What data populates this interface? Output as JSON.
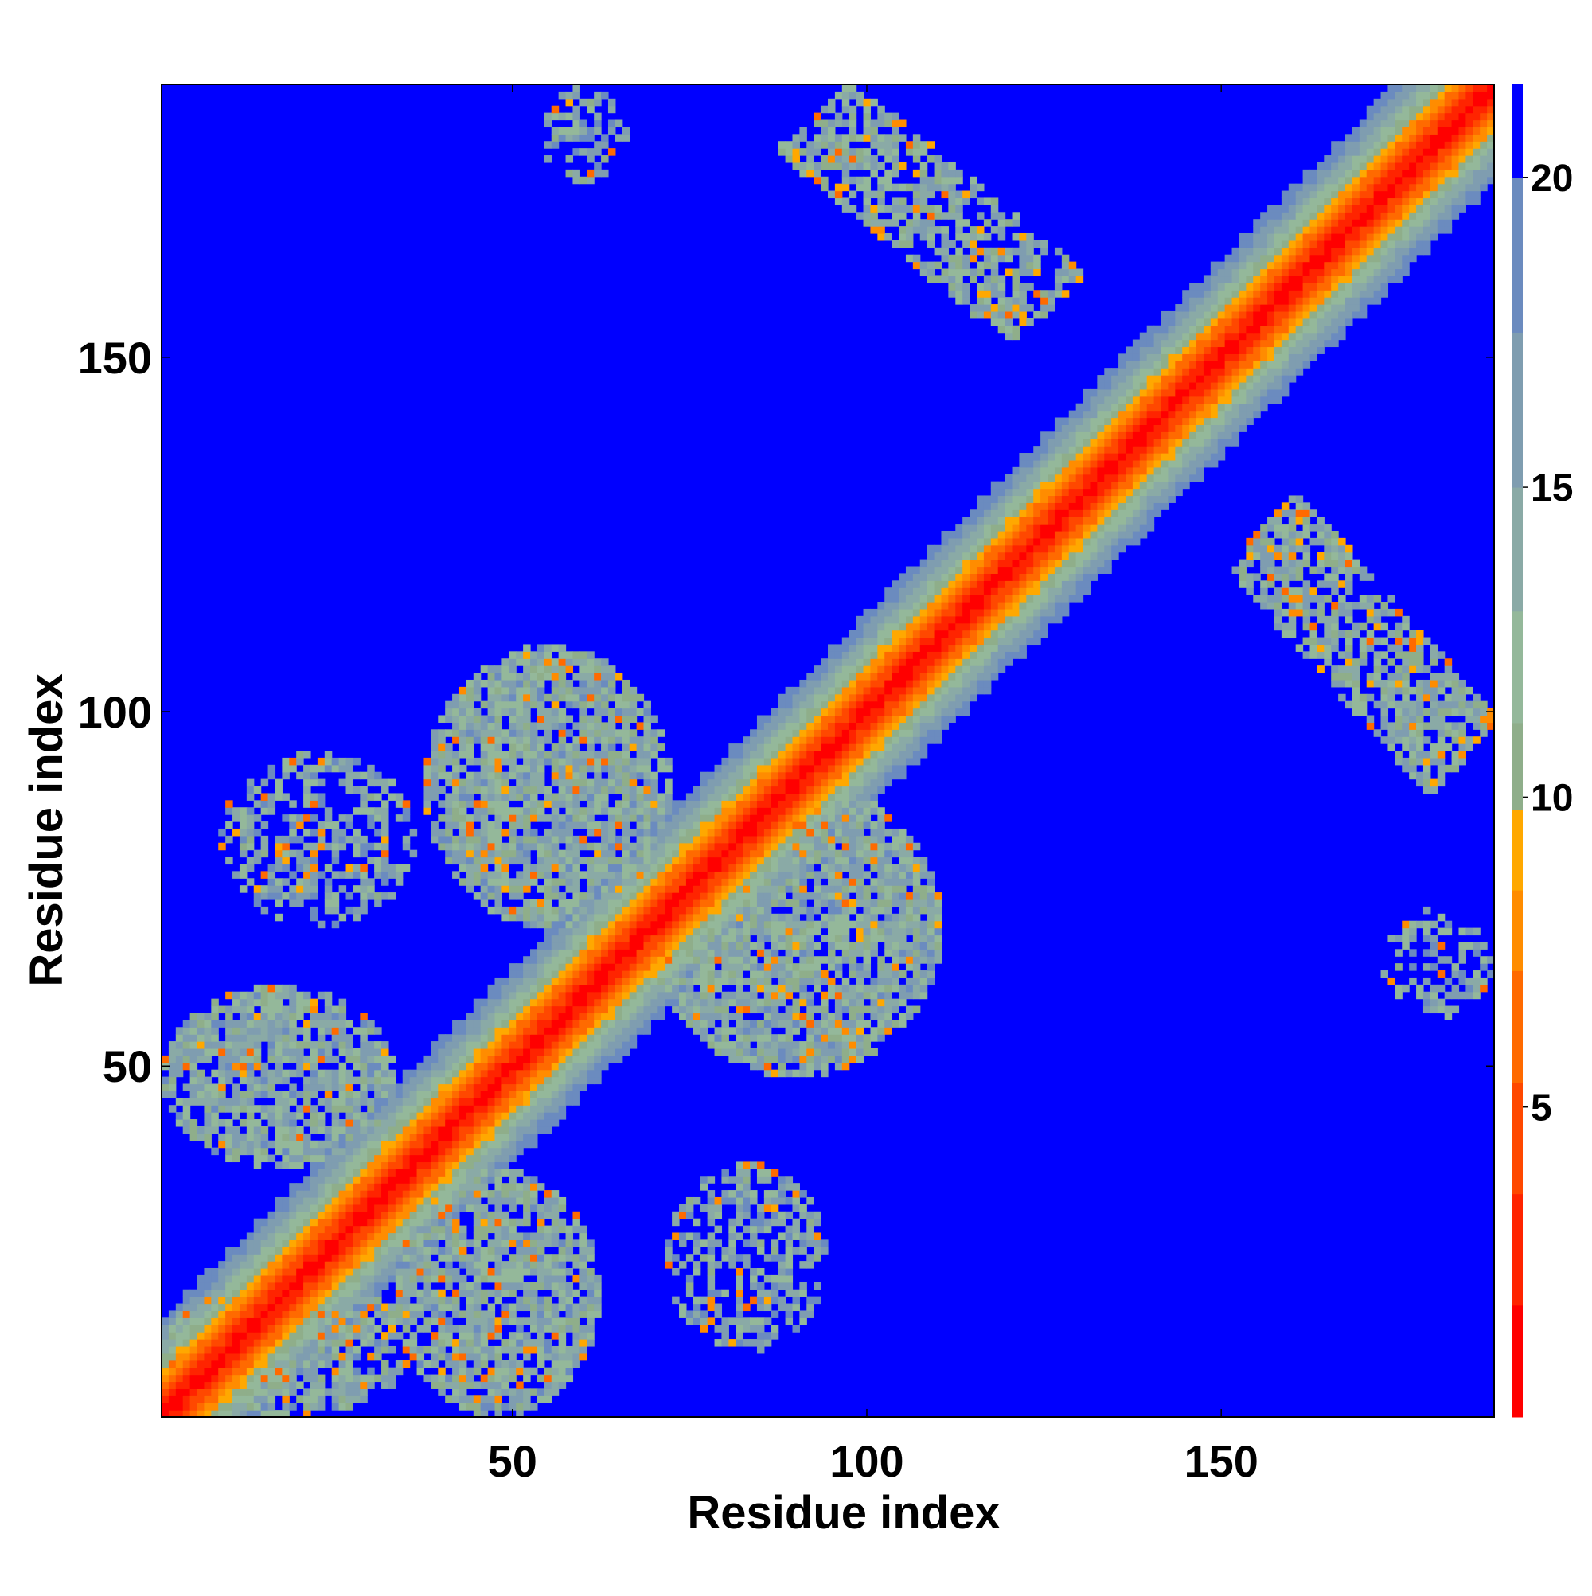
{
  "chart_data": {
    "type": "heatmap",
    "xlabel": "Residue index",
    "ylabel": "Residue index",
    "n_residues": 188,
    "xlim": [
      1,
      188
    ],
    "ylim": [
      1,
      188
    ],
    "xticks": [
      50,
      100,
      150
    ],
    "yticks": [
      50,
      100,
      150
    ],
    "colorbar": {
      "range": [
        0,
        21.5
      ],
      "ticks": [
        5,
        10,
        15,
        20
      ],
      "colors": [
        "#ff0000",
        "#ff2400",
        "#ff4800",
        "#ff6a00",
        "#ff8c00",
        "#ffa800",
        "#8fae8a",
        "#94b89a",
        "#8aaaa6",
        "#7f9db0",
        "#6b8bbf",
        "#0000ff"
      ],
      "boundaries": [
        0,
        1.8,
        3.6,
        5.4,
        7.2,
        8.5,
        9.8,
        11.2,
        13.0,
        15.0,
        17.5,
        20.0,
        21.5
      ]
    },
    "background_value": 21.5,
    "diagonal_band": {
      "center_value": 0.5,
      "slope_per_residue": 1.4,
      "max_offset": 15
    },
    "contact_regions": [
      {
        "x": [
          1,
          36
        ],
        "y": [
          1,
          20
        ],
        "mean": 14.0,
        "density": 0.75
      },
      {
        "x": [
          1,
          33
        ],
        "y": [
          36,
          61
        ],
        "mean": 14.0,
        "density": 0.8
      },
      {
        "x": [
          34,
          62
        ],
        "y": [
          1,
          35
        ],
        "mean": 14.0,
        "density": 0.8
      },
      {
        "x": [
          9,
          36
        ],
        "y": [
          70,
          94
        ],
        "mean": 15.0,
        "density": 0.55
      },
      {
        "x": [
          38,
          72
        ],
        "y": [
          70,
          109
        ],
        "mean": 14.0,
        "density": 0.85
      },
      {
        "x": [
          70,
          110
        ],
        "y": [
          49,
          90
        ],
        "mean": 14.0,
        "density": 0.85
      },
      {
        "x": [
          72,
          94
        ],
        "y": [
          10,
          36
        ],
        "mean": 15.0,
        "density": 0.55
      },
      {
        "x": [
          54,
          66
        ],
        "y": [
          175,
          188
        ],
        "mean": 15.0,
        "density": 0.45
      },
      {
        "x": [
          88,
          130
        ],
        "y": [
          153,
          188
        ],
        "mean": 13.5,
        "density": 0.7,
        "band": "anti"
      },
      {
        "x": [
          152,
          188
        ],
        "y": [
          89,
          130
        ],
        "mean": 13.5,
        "density": 0.7,
        "band": "anti"
      },
      {
        "x": [
          173,
          188
        ],
        "y": [
          57,
          72
        ],
        "mean": 15.0,
        "density": 0.45
      }
    ]
  }
}
